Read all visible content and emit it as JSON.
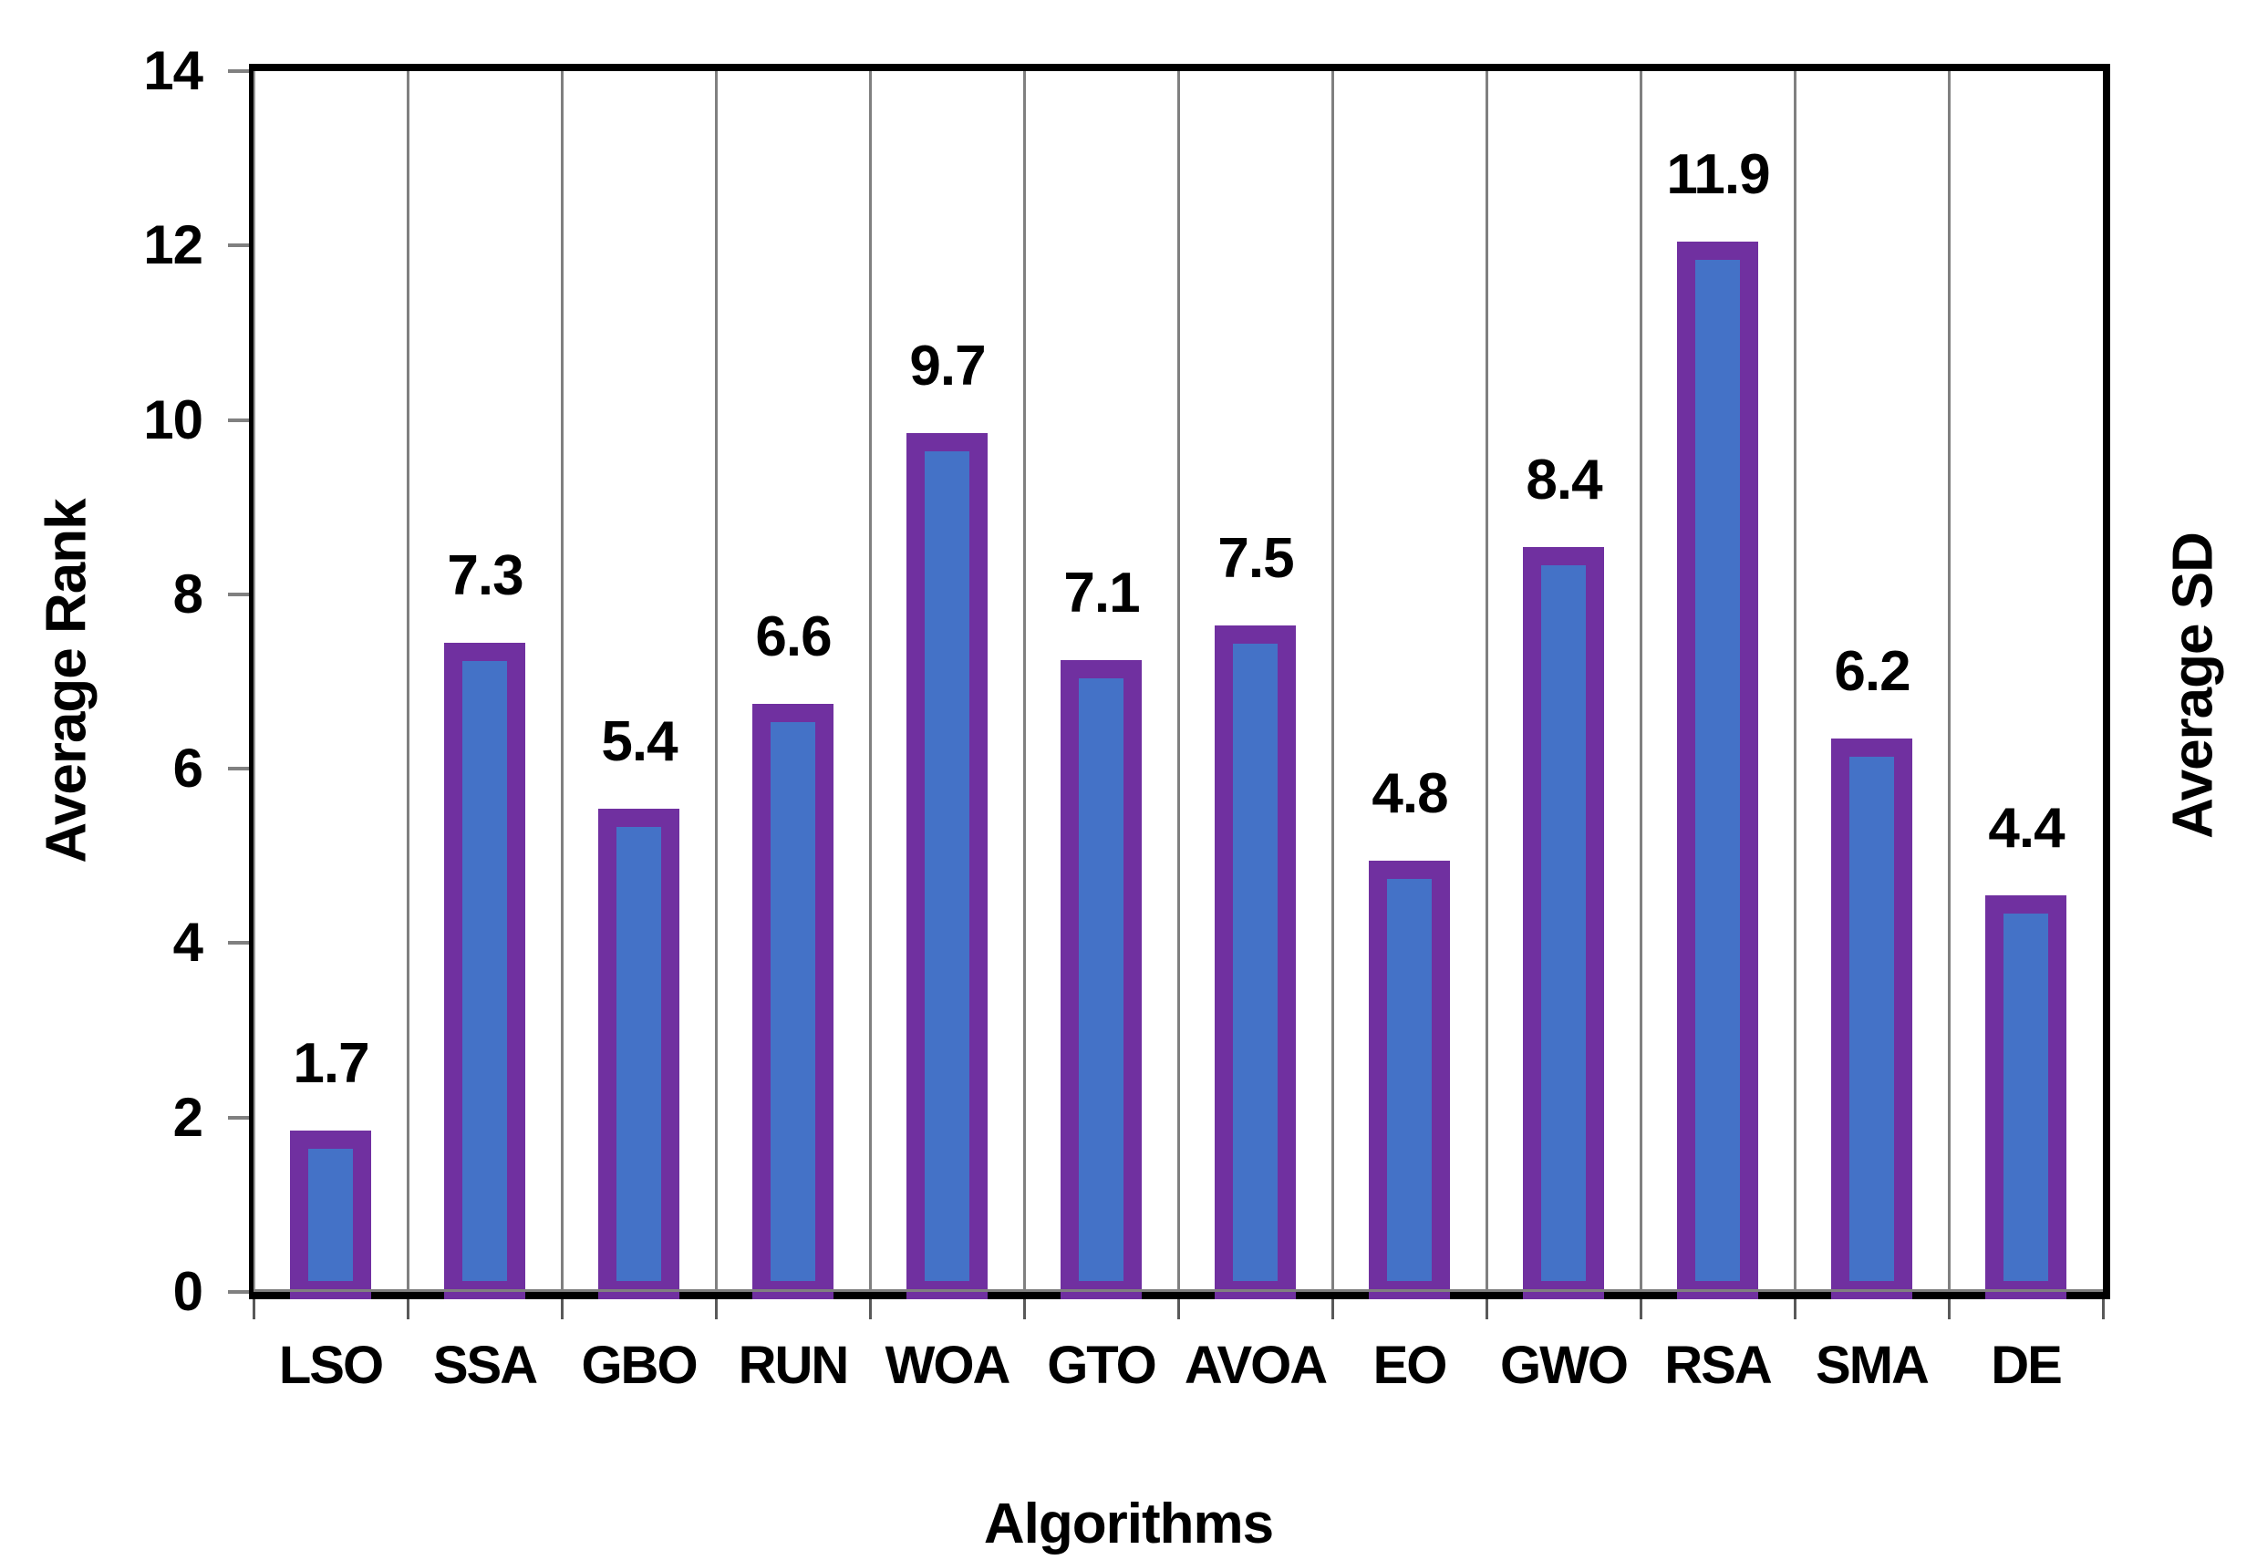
{
  "chart_data": {
    "type": "bar",
    "title": "",
    "categories": [
      "LSO",
      "SSA",
      "GBO",
      "RUN",
      "WOA",
      "GTO",
      "AVOA",
      "EO",
      "GWO",
      "RSA",
      "SMA",
      "DE"
    ],
    "values": [
      1.7,
      7.3,
      5.4,
      6.6,
      9.7,
      7.1,
      7.5,
      4.8,
      8.4,
      11.9,
      6.2,
      4.4
    ],
    "value_label_format": "1 decimal, shown above each bar",
    "xlabel": "Algorithms",
    "ylabel_left": "Average Rank",
    "ylabel_right": "Average SD",
    "ylim": [
      0,
      14
    ],
    "yticks": [
      0,
      2,
      4,
      6,
      8,
      10,
      12,
      14
    ],
    "grid": "vertical gray separators between categories, no horizontal gridlines",
    "legend": "none",
    "colors": {
      "bar_fill": "#4472C7",
      "bar_border": "#7030A0",
      "gridline": "#808080",
      "axis_frame": "#000000",
      "label_text": "#000000"
    }
  }
}
